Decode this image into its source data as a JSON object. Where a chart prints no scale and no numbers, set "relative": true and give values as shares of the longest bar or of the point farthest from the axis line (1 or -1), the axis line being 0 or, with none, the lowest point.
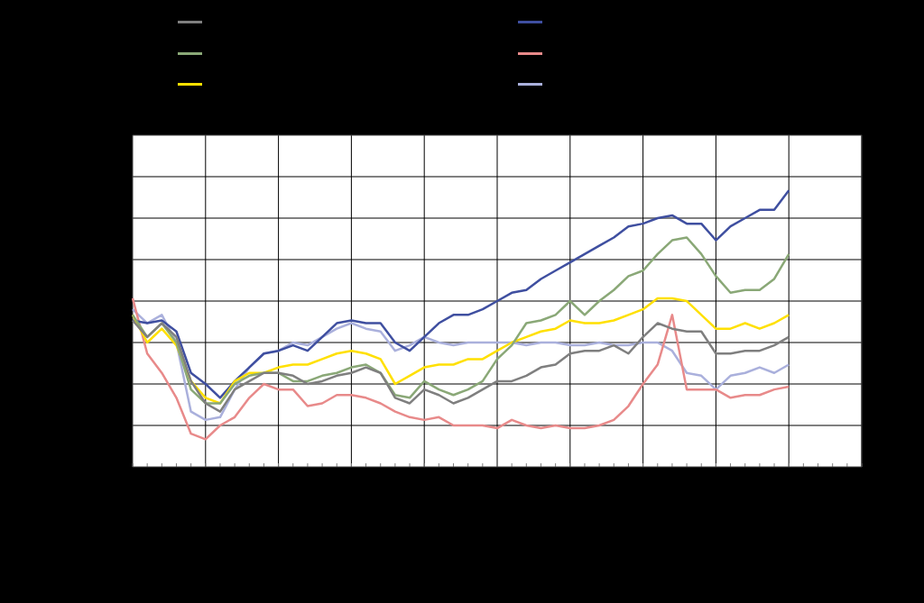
{
  "chart_data": {
    "type": "line",
    "relative": true,
    "grid": true,
    "categories": [
      null,
      null,
      null,
      null,
      null,
      null,
      null,
      null,
      null,
      null,
      null,
      null,
      null,
      null,
      null,
      null,
      null,
      null,
      null,
      null,
      null,
      null,
      null,
      null,
      null,
      null,
      null,
      null,
      null,
      null,
      null,
      null,
      null,
      null,
      null,
      null,
      null,
      null,
      null,
      null,
      null,
      null,
      null,
      null,
      null,
      null,
      null,
      null,
      null,
      null,
      null
    ],
    "series": [
      {
        "color": "#7f7f7f",
        "values": [
          0.53,
          0.47,
          0.52,
          0.47,
          0.31,
          0.23,
          0.2,
          0.28,
          0.31,
          0.34,
          0.34,
          0.33,
          0.3,
          0.31,
          0.33,
          0.34,
          0.36,
          0.34,
          0.25,
          0.23,
          0.28,
          0.26,
          0.23,
          0.25,
          0.28,
          0.31,
          0.31,
          0.33,
          0.36,
          0.37,
          0.41,
          0.42,
          0.42,
          0.44,
          0.41,
          0.47,
          0.52,
          0.5,
          0.49,
          0.49,
          0.41,
          0.41,
          0.42,
          0.42,
          0.44,
          0.47,
          null,
          null,
          null,
          null,
          null
        ]
      },
      {
        "color": "#8aa877",
        "values": [
          0.55,
          0.47,
          0.52,
          0.45,
          0.28,
          0.23,
          0.23,
          0.3,
          0.33,
          0.34,
          0.34,
          0.31,
          0.31,
          0.33,
          0.34,
          0.36,
          0.37,
          0.34,
          0.26,
          0.25,
          0.31,
          0.28,
          0.26,
          0.28,
          0.31,
          0.39,
          0.44,
          0.52,
          0.53,
          0.55,
          0.6,
          0.55,
          0.6,
          0.64,
          0.69,
          0.71,
          0.77,
          0.82,
          0.83,
          0.77,
          0.69,
          0.63,
          0.64,
          0.64,
          0.68,
          0.77,
          null,
          null,
          null,
          null,
          null
        ]
      },
      {
        "color": "#ffe000",
        "values": [
          0.55,
          0.45,
          0.5,
          0.44,
          0.31,
          0.25,
          0.23,
          0.31,
          0.34,
          0.34,
          0.36,
          0.37,
          0.37,
          0.39,
          0.41,
          0.42,
          0.41,
          0.39,
          0.3,
          0.33,
          0.36,
          0.37,
          0.37,
          0.39,
          0.39,
          0.42,
          0.45,
          0.47,
          0.49,
          0.5,
          0.53,
          0.52,
          0.52,
          0.53,
          0.55,
          0.57,
          0.61,
          0.61,
          0.6,
          0.55,
          0.5,
          0.5,
          0.52,
          0.5,
          0.52,
          0.55,
          null,
          null,
          null,
          null,
          null
        ]
      },
      {
        "color": "#3f4fa0",
        "values": [
          0.53,
          0.52,
          0.53,
          0.49,
          0.34,
          0.3,
          0.25,
          0.31,
          0.36,
          0.41,
          0.42,
          0.44,
          0.42,
          0.47,
          0.52,
          0.53,
          0.52,
          0.52,
          0.45,
          0.42,
          0.47,
          0.52,
          0.55,
          0.55,
          0.57,
          0.6,
          0.63,
          0.64,
          0.68,
          0.71,
          0.74,
          0.77,
          0.8,
          0.83,
          0.87,
          0.88,
          0.9,
          0.91,
          0.88,
          0.88,
          0.82,
          0.87,
          0.9,
          0.93,
          0.93,
          1.0,
          null,
          null,
          null,
          null,
          null
        ]
      },
      {
        "color": "#e88a8a",
        "values": [
          0.61,
          0.41,
          0.34,
          0.25,
          0.12,
          0.1,
          0.15,
          0.18,
          0.25,
          0.3,
          0.28,
          0.28,
          0.22,
          0.23,
          0.26,
          0.26,
          0.25,
          0.23,
          0.2,
          0.18,
          0.17,
          0.18,
          0.15,
          0.15,
          0.15,
          0.14,
          0.17,
          0.15,
          0.14,
          0.15,
          0.14,
          0.14,
          0.15,
          0.17,
          0.22,
          0.3,
          0.37,
          0.55,
          0.28,
          0.28,
          0.28,
          0.25,
          0.26,
          0.26,
          0.28,
          0.29,
          null,
          null,
          null,
          null,
          null
        ]
      },
      {
        "color": "#aab0dc",
        "values": [
          0.57,
          0.52,
          0.55,
          0.45,
          0.2,
          0.17,
          0.18,
          0.28,
          0.36,
          0.41,
          0.42,
          0.45,
          0.44,
          0.47,
          0.5,
          0.52,
          0.5,
          0.49,
          0.42,
          0.44,
          0.47,
          0.45,
          0.44,
          0.45,
          0.45,
          0.45,
          0.45,
          0.44,
          0.45,
          0.45,
          0.44,
          0.44,
          0.45,
          0.44,
          0.44,
          0.45,
          0.45,
          0.42,
          0.34,
          0.33,
          0.28,
          0.33,
          0.34,
          0.36,
          0.34,
          0.37,
          null,
          null,
          null,
          null,
          null
        ]
      }
    ]
  }
}
